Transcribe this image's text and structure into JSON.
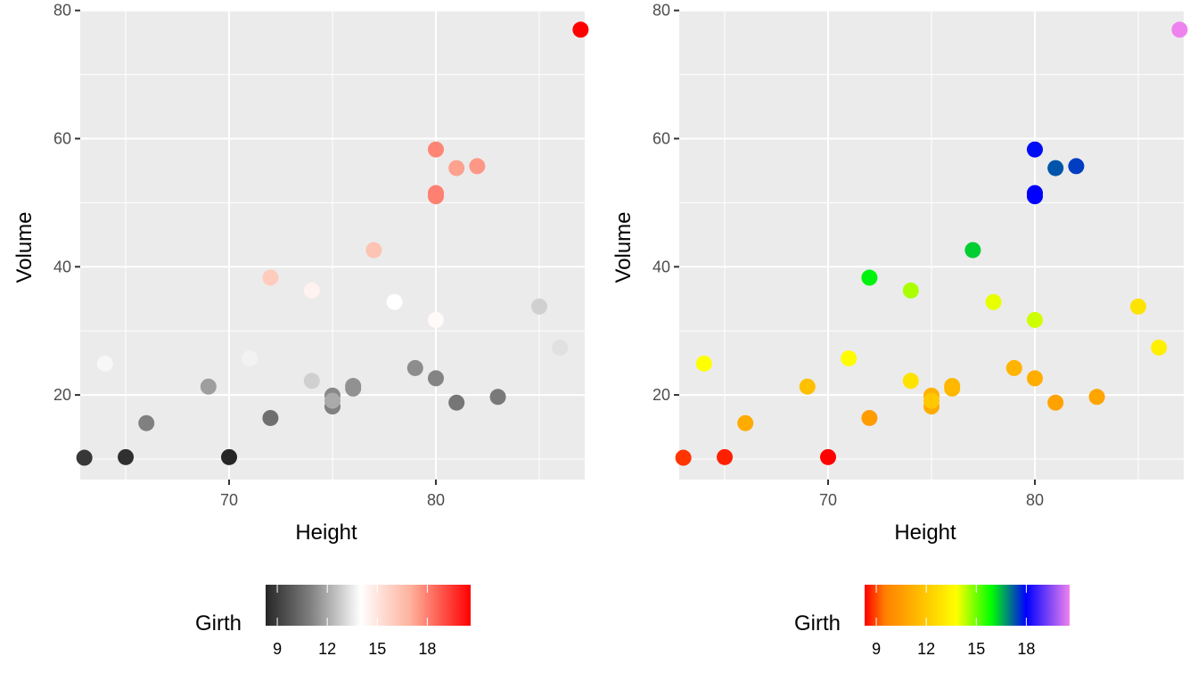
{
  "chart_data": [
    {
      "type": "scatter",
      "title": "",
      "xlabel": "Height",
      "ylabel": "Volume",
      "xlim": [
        62.8,
        87.2
      ],
      "ylim": [
        6.8,
        80.1
      ],
      "xticks": [
        70,
        80
      ],
      "yticks": [
        20,
        40,
        60,
        80
      ],
      "grid": true,
      "legend": {
        "title": "Girth",
        "placement": "bottom",
        "type": "colorbar",
        "ticks": [
          9,
          12,
          15,
          18
        ],
        "range": [
          8.3,
          20.6
        ],
        "gradient": [
          {
            "value": 8.3,
            "color": "#262626"
          },
          {
            "value": 11.0,
            "color": "#808080"
          },
          {
            "value": 14.0,
            "color": "#ffffff"
          },
          {
            "value": 17.0,
            "color": "#fdb19c"
          },
          {
            "value": 20.6,
            "color": "#ff0000"
          }
        ]
      },
      "color_by": "Girth",
      "points": [
        {
          "Girth": 8.3,
          "Height": 70,
          "Volume": 10.3
        },
        {
          "Girth": 8.6,
          "Height": 65,
          "Volume": 10.3
        },
        {
          "Girth": 8.8,
          "Height": 63,
          "Volume": 10.2
        },
        {
          "Girth": 10.5,
          "Height": 72,
          "Volume": 16.4
        },
        {
          "Girth": 10.7,
          "Height": 81,
          "Volume": 18.8
        },
        {
          "Girth": 10.8,
          "Height": 83,
          "Volume": 19.7
        },
        {
          "Girth": 11.0,
          "Height": 66,
          "Volume": 15.6
        },
        {
          "Girth": 11.0,
          "Height": 75,
          "Volume": 18.2
        },
        {
          "Girth": 11.1,
          "Height": 80,
          "Volume": 22.6
        },
        {
          "Girth": 11.2,
          "Height": 75,
          "Volume": 19.9
        },
        {
          "Girth": 11.3,
          "Height": 79,
          "Volume": 24.2
        },
        {
          "Girth": 11.4,
          "Height": 76,
          "Volume": 21.0
        },
        {
          "Girth": 11.4,
          "Height": 76,
          "Volume": 21.4
        },
        {
          "Girth": 11.7,
          "Height": 69,
          "Volume": 21.3
        },
        {
          "Girth": 12.0,
          "Height": 75,
          "Volume": 19.1
        },
        {
          "Girth": 12.9,
          "Height": 74,
          "Volume": 22.2
        },
        {
          "Girth": 12.9,
          "Height": 85,
          "Volume": 33.8
        },
        {
          "Girth": 13.3,
          "Height": 86,
          "Volume": 27.4
        },
        {
          "Girth": 13.7,
          "Height": 71,
          "Volume": 25.7
        },
        {
          "Girth": 13.8,
          "Height": 64,
          "Volume": 24.9
        },
        {
          "Girth": 14.0,
          "Height": 78,
          "Volume": 34.5
        },
        {
          "Girth": 14.2,
          "Height": 80,
          "Volume": 31.7
        },
        {
          "Girth": 14.5,
          "Height": 74,
          "Volume": 36.3
        },
        {
          "Girth": 16.0,
          "Height": 72,
          "Volume": 38.3
        },
        {
          "Girth": 16.3,
          "Height": 77,
          "Volume": 42.6
        },
        {
          "Girth": 17.3,
          "Height": 81,
          "Volume": 55.4
        },
        {
          "Girth": 17.5,
          "Height": 82,
          "Volume": 55.7
        },
        {
          "Girth": 17.9,
          "Height": 80,
          "Volume": 58.3
        },
        {
          "Girth": 18.0,
          "Height": 80,
          "Volume": 51.5
        },
        {
          "Girth": 18.0,
          "Height": 80,
          "Volume": 51.0
        },
        {
          "Girth": 20.6,
          "Height": 87,
          "Volume": 77.0
        }
      ]
    },
    {
      "type": "scatter",
      "title": "",
      "xlabel": "Height",
      "ylabel": "Volume",
      "xlim": [
        62.8,
        87.2
      ],
      "ylim": [
        6.8,
        80.1
      ],
      "xticks": [
        70,
        80
      ],
      "yticks": [
        20,
        40,
        60,
        80
      ],
      "grid": true,
      "legend": {
        "title": "Girth",
        "placement": "bottom",
        "type": "colorbar",
        "ticks": [
          9,
          12,
          15,
          18
        ],
        "range": [
          8.3,
          20.6
        ],
        "gradient": [
          {
            "value": 8.3,
            "color": "#ff0000"
          },
          {
            "value": 9.5,
            "color": "#ff7f00"
          },
          {
            "value": 12.5,
            "color": "#ffd700"
          },
          {
            "value": 13.8,
            "color": "#ffff00"
          },
          {
            "value": 15.9,
            "color": "#00ff00"
          },
          {
            "value": 18.0,
            "color": "#0000ff"
          },
          {
            "value": 20.6,
            "color": "#ee82ee"
          }
        ]
      },
      "color_by": "Girth",
      "points_ref": "same as chart_data[0].points"
    }
  ]
}
